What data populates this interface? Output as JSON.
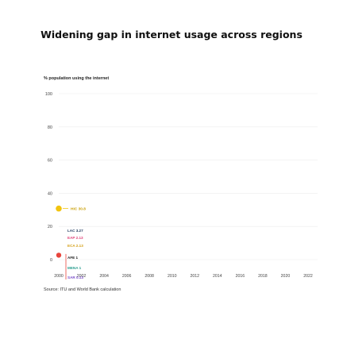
{
  "chart_data": {
    "type": "line",
    "title": "Widening gap in internet usage across regions",
    "ylabel": "% population using the internet",
    "ylim": [
      0,
      100
    ],
    "y_ticks": [
      0,
      20,
      40,
      60,
      80,
      100
    ],
    "xlim": [
      2000,
      2022
    ],
    "x_ticks": [
      "2000",
      "2002",
      "2004",
      "2006",
      "2008",
      "2010",
      "2012",
      "2014",
      "2016",
      "2018",
      "2020",
      "2022"
    ],
    "grid": true,
    "accent_color": "#e8453c",
    "series": [
      {
        "name": "HIC",
        "label": "HIC 30.8",
        "x": [
          2000
        ],
        "values": [
          30.8
        ],
        "color": "#f2c40f"
      },
      {
        "name": "LAC",
        "label": "LAC 3.27",
        "x": [
          2000
        ],
        "values": [
          3.27
        ],
        "color": "#1f3a5f"
      },
      {
        "name": "EAP",
        "label": "EAP 2.13",
        "x": [
          2000
        ],
        "values": [
          2.13
        ],
        "color": "#e0457b"
      },
      {
        "name": "ECA",
        "label": "ECA 2.13",
        "x": [
          2000
        ],
        "values": [
          2.13
        ],
        "color": "#d4a017"
      },
      {
        "name": "AFE",
        "label": "AFE 1",
        "x": [
          2000
        ],
        "values": [
          1
        ],
        "color": "#1a1a1a"
      },
      {
        "name": "MENA",
        "label": "MENA 1",
        "x": [
          2000
        ],
        "values": [
          1
        ],
        "color": "#2a9d8f"
      },
      {
        "name": "SAR",
        "label": "SAR 0.13",
        "x": [
          2000
        ],
        "values": [
          0.13
        ],
        "color": "#7b4fc9"
      }
    ],
    "source": "Source: ITU and World Bank calculation"
  }
}
